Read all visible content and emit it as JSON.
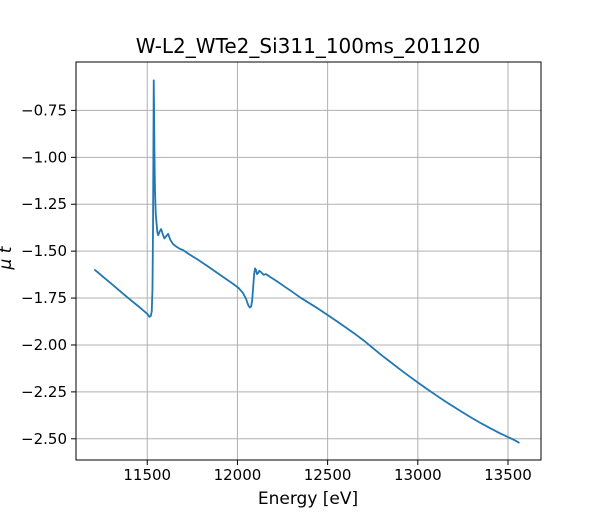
{
  "figure": {
    "background": "#ffffff",
    "title": "W-L2_WTe2_Si311_100ms_201120"
  },
  "chart_data": {
    "type": "line",
    "title": "W-L2_WTe2_Si311_100ms_201120",
    "xlabel": "Energy [eV]",
    "ylabel": "μ t",
    "xlim": [
      11105,
      13683
    ],
    "ylim": [
      -2.613,
      -0.492
    ],
    "xticks": [
      11500,
      12000,
      12500,
      13000,
      13500
    ],
    "xtick_labels": [
      "11500",
      "12000",
      "12500",
      "13000",
      "13500"
    ],
    "yticks": [
      -0.75,
      -1.0,
      -1.25,
      -1.5,
      -1.75,
      -2.0,
      -2.25,
      -2.5
    ],
    "ytick_labels": [
      "−0.75",
      "−1.00",
      "−1.25",
      "−1.50",
      "−1.75",
      "−2.00",
      "−2.25",
      "−2.50"
    ],
    "grid": true,
    "grid_color": "#b0b0b0",
    "spine_color": "#000000",
    "line_color": "#1f77b4",
    "line_width": 1.8,
    "legend": null,
    "series": [
      {
        "name": "mu_t_vs_energy",
        "points": [
          [
            11210,
            -1.6
          ],
          [
            11260,
            -1.641
          ],
          [
            11310,
            -1.681
          ],
          [
            11360,
            -1.722
          ],
          [
            11410,
            -1.762
          ],
          [
            11460,
            -1.801
          ],
          [
            11500,
            -1.834
          ],
          [
            11512,
            -1.85
          ],
          [
            11520,
            -1.845
          ],
          [
            11525,
            -1.82
          ],
          [
            11529,
            -1.7
          ],
          [
            11532,
            -1.38
          ],
          [
            11534,
            -0.98
          ],
          [
            11536,
            -0.59
          ],
          [
            11538,
            -0.76
          ],
          [
            11540,
            -0.98
          ],
          [
            11543,
            -1.18
          ],
          [
            11547,
            -1.3
          ],
          [
            11551,
            -1.345
          ],
          [
            11556,
            -1.4
          ],
          [
            11561,
            -1.415
          ],
          [
            11569,
            -1.395
          ],
          [
            11577,
            -1.382
          ],
          [
            11586,
            -1.41
          ],
          [
            11595,
            -1.432
          ],
          [
            11605,
            -1.42
          ],
          [
            11616,
            -1.408
          ],
          [
            11628,
            -1.44
          ],
          [
            11643,
            -1.462
          ],
          [
            11660,
            -1.475
          ],
          [
            11680,
            -1.487
          ],
          [
            11700,
            -1.495
          ],
          [
            11725,
            -1.512
          ],
          [
            11750,
            -1.527
          ],
          [
            11775,
            -1.542
          ],
          [
            11800,
            -1.558
          ],
          [
            11830,
            -1.577
          ],
          [
            11860,
            -1.597
          ],
          [
            11890,
            -1.617
          ],
          [
            11920,
            -1.637
          ],
          [
            11950,
            -1.657
          ],
          [
            11980,
            -1.677
          ],
          [
            12005,
            -1.695
          ],
          [
            12030,
            -1.722
          ],
          [
            12048,
            -1.755
          ],
          [
            12060,
            -1.788
          ],
          [
            12068,
            -1.8
          ],
          [
            12076,
            -1.795
          ],
          [
            12082,
            -1.76
          ],
          [
            12088,
            -1.68
          ],
          [
            12093,
            -1.618
          ],
          [
            12098,
            -1.592
          ],
          [
            12103,
            -1.6
          ],
          [
            12108,
            -1.622
          ],
          [
            12114,
            -1.618
          ],
          [
            12121,
            -1.605
          ],
          [
            12129,
            -1.61
          ],
          [
            12137,
            -1.618
          ],
          [
            12146,
            -1.626
          ],
          [
            12157,
            -1.622
          ],
          [
            12170,
            -1.63
          ],
          [
            12185,
            -1.64
          ],
          [
            12205,
            -1.652
          ],
          [
            12230,
            -1.668
          ],
          [
            12260,
            -1.688
          ],
          [
            12300,
            -1.714
          ],
          [
            12350,
            -1.748
          ],
          [
            12400,
            -1.778
          ],
          [
            12450,
            -1.808
          ],
          [
            12500,
            -1.84
          ],
          [
            12550,
            -1.873
          ],
          [
            12600,
            -1.906
          ],
          [
            12650,
            -1.94
          ],
          [
            12700,
            -1.976
          ],
          [
            12750,
            -2.016
          ],
          [
            12800,
            -2.055
          ],
          [
            12850,
            -2.092
          ],
          [
            12900,
            -2.129
          ],
          [
            12950,
            -2.165
          ],
          [
            13000,
            -2.2
          ],
          [
            13050,
            -2.234
          ],
          [
            13100,
            -2.267
          ],
          [
            13150,
            -2.299
          ],
          [
            13200,
            -2.33
          ],
          [
            13250,
            -2.36
          ],
          [
            13300,
            -2.389
          ],
          [
            13350,
            -2.417
          ],
          [
            13400,
            -2.443
          ],
          [
            13450,
            -2.468
          ],
          [
            13500,
            -2.491
          ],
          [
            13530,
            -2.504
          ],
          [
            13560,
            -2.52
          ]
        ]
      }
    ]
  }
}
